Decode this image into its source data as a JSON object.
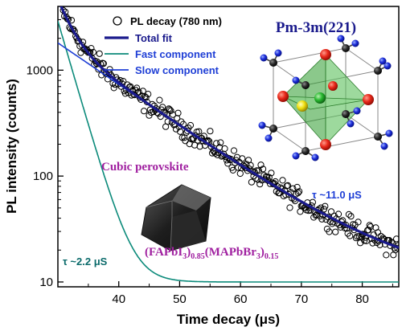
{
  "chart_data": {
    "type": "scatter",
    "xlabel": "Time decay (μs)",
    "ylabel": "PL intensity (counts)",
    "xlim": [
      30,
      86
    ],
    "ylim": [
      9,
      4000
    ],
    "yscale": "log",
    "x_ticks": [
      40,
      50,
      60,
      70,
      80
    ],
    "x_tick_labels": [
      "40",
      "50",
      "60",
      "70",
      "80"
    ],
    "y_ticks": [
      10,
      100,
      1000
    ],
    "y_tick_labels": [
      "10",
      "100",
      "1000"
    ],
    "legend_position": "top-right",
    "series": [
      {
        "name": "PL decay (780 nm)",
        "kind": "scatter",
        "color": "#000000",
        "marker": "open-circle",
        "model": {
          "A_fast": 2900,
          "tau_fast": 2.2,
          "A_slow": 1800,
          "tau_slow": 11.0,
          "t0": 30,
          "baseline": 10,
          "noise_log": 0.05
        }
      },
      {
        "name": "Total fit",
        "kind": "line",
        "color": "#1a1a8c",
        "width": 3.2
      },
      {
        "name": "Fast component",
        "kind": "line",
        "color": "#0b8a7a",
        "width": 1.6
      },
      {
        "name": "Slow component",
        "kind": "line",
        "color": "#1f3fd6",
        "width": 1.6
      }
    ],
    "annotations": {
      "space_group": "Pm-3m(221)",
      "phase": "Cubic perovskite",
      "tau_slow": "τ ~11.0 μS",
      "tau_fast": "τ ~2.2 μS",
      "formula_a": "(FAPbI",
      "formula_a_sub": "3",
      "formula_b": ")",
      "formula_b_sub": "0.85",
      "formula_c": "(MAPbBr",
      "formula_c_sub": "3",
      "formula_d": ")",
      "formula_d_sub": "0.15"
    },
    "colors": {
      "phase_label": "#a020a0",
      "tau_slow_label": "#1f3fd6",
      "tau_fast_label": "#0b6b6b",
      "formula": "#a020a0",
      "space_group": "#1a1a8c"
    }
  }
}
